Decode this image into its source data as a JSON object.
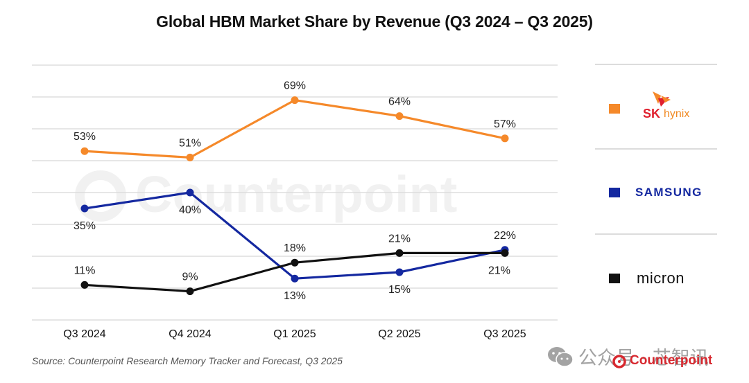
{
  "chart_data": {
    "type": "line",
    "title": "Global HBM Market Share by Revenue (Q3 2024 – Q3 2025)",
    "xlabel": "",
    "ylabel": "",
    "categories": [
      "Q3 2024",
      "Q4 2024",
      "Q1 2025",
      "Q2 2025",
      "Q3 2025"
    ],
    "ylim": [
      0,
      80
    ],
    "grid": true,
    "legend_position": "right",
    "series": [
      {
        "name": "SK hynix",
        "color": "#f5892a",
        "values": [
          53,
          51,
          69,
          64,
          57
        ],
        "labels": [
          "53%",
          "51%",
          "69%",
          "64%",
          "57%"
        ],
        "label_pos": [
          "above",
          "above",
          "above",
          "above",
          "above"
        ]
      },
      {
        "name": "Samsung",
        "color": "#1428a0",
        "values": [
          35,
          40,
          13,
          15,
          22
        ],
        "labels": [
          "35%",
          "40%",
          "13%",
          "15%",
          "22%"
        ],
        "label_pos": [
          "below",
          "below",
          "below",
          "below",
          "above"
        ]
      },
      {
        "name": "Micron",
        "color": "#111111",
        "values": [
          11,
          9,
          18,
          21,
          21
        ],
        "labels": [
          "11%",
          "9%",
          "18%",
          "21%",
          "21%"
        ],
        "label_pos": [
          "above",
          "above",
          "above",
          "above",
          "below"
        ]
      }
    ]
  },
  "legend": {
    "skhynix": {
      "sk": "SK",
      "hynix": "hynix",
      "color": "#f5892a"
    },
    "samsung": {
      "text": "SAMSUNG",
      "color": "#1428a0"
    },
    "micron": {
      "text": "micron",
      "color": "#111111"
    }
  },
  "footer": {
    "source": "Source: Counterpoint Research Memory Tracker and Forecast, Q3 2025",
    "wechat_text": "公众号 · 芯智讯",
    "brand": "Counterpoint",
    "watermark": "Counterpoint"
  }
}
